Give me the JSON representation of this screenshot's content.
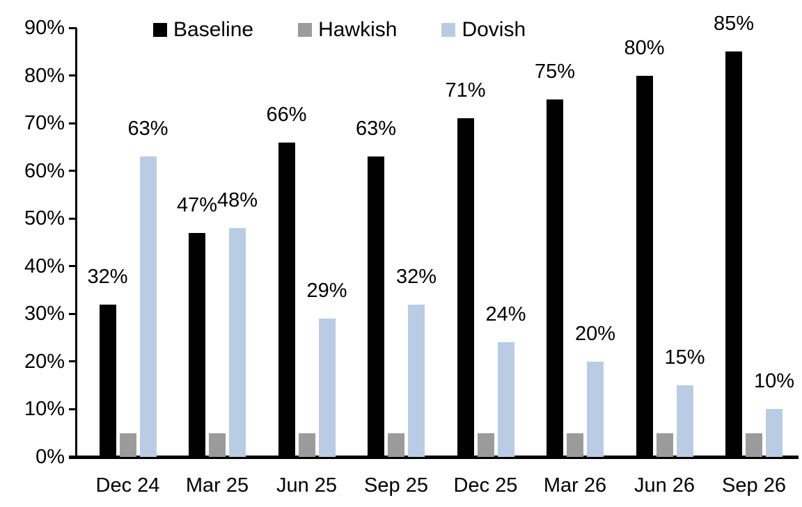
{
  "chart_data": {
    "type": "bar",
    "title": "",
    "xlabel": "",
    "ylabel": "",
    "categories": [
      "Dec 24",
      "Mar 25",
      "Jun 25",
      "Sep 25",
      "Dec 25",
      "Mar 26",
      "Jun 26",
      "Sep 26"
    ],
    "series": [
      {
        "name": "Baseline",
        "color": "#000000",
        "values": [
          32,
          47,
          66,
          63,
          71,
          75,
          80,
          85
        ],
        "labels": [
          "32%",
          "47%",
          "66%",
          "63%",
          "71%",
          "75%",
          "80%",
          "85%"
        ],
        "show_labels": true
      },
      {
        "name": "Hawkish",
        "color": "#9B9B9B",
        "values": [
          5,
          5,
          5,
          5,
          5,
          5,
          5,
          5
        ],
        "labels": [],
        "show_labels": false
      },
      {
        "name": "Dovish",
        "color": "#B9CCE4",
        "values": [
          63,
          48,
          29,
          32,
          24,
          20,
          15,
          10
        ],
        "labels": [
          "63%",
          "48%",
          "29%",
          "32%",
          "24%",
          "20%",
          "15%",
          "10%"
        ],
        "show_labels": true
      }
    ],
    "ylim": [
      0,
      90
    ],
    "y_tick_step": 10,
    "y_ticks": [
      "0%",
      "10%",
      "20%",
      "30%",
      "40%",
      "50%",
      "60%",
      "70%",
      "80%",
      "90%"
    ],
    "grid": false,
    "legend_position": "top",
    "axis_color": "#000000",
    "background_color": "#ffffff"
  }
}
